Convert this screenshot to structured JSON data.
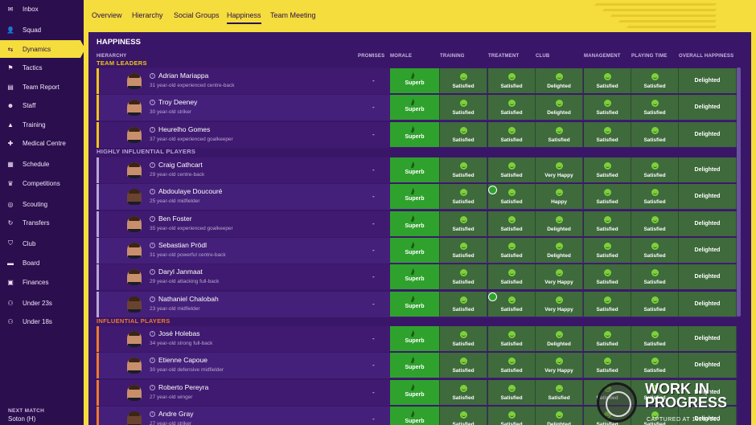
{
  "sidebar": {
    "items": [
      {
        "label": "Inbox",
        "icon": "inbox-icon",
        "glyph": "✉",
        "active": false
      },
      {
        "label": "Squad",
        "icon": "squad-icon",
        "glyph": "👤",
        "active": false
      },
      {
        "label": "Dynamics",
        "icon": "dynamics-icon",
        "glyph": "⇆",
        "active": true
      },
      {
        "label": "Tactics",
        "icon": "tactics-icon",
        "glyph": "⚑",
        "active": false
      },
      {
        "label": "Team Report",
        "icon": "report-icon",
        "glyph": "▤",
        "active": false
      },
      {
        "label": "Staff",
        "icon": "staff-icon",
        "glyph": "☻",
        "active": false
      },
      {
        "label": "Training",
        "icon": "training-icon",
        "glyph": "▲",
        "active": false
      },
      {
        "label": "Medical Centre",
        "icon": "medical-icon",
        "glyph": "✚",
        "active": false
      },
      {
        "label": "Schedule",
        "icon": "schedule-icon",
        "glyph": "▦",
        "active": false
      },
      {
        "label": "Competitions",
        "icon": "trophy-icon",
        "glyph": "♛",
        "active": false
      },
      {
        "label": "Scouting",
        "icon": "scouting-icon",
        "glyph": "◎",
        "active": false
      },
      {
        "label": "Transfers",
        "icon": "transfers-icon",
        "glyph": "↻",
        "active": false
      },
      {
        "label": "Club",
        "icon": "club-icon",
        "glyph": "⛉",
        "active": false
      },
      {
        "label": "Board",
        "icon": "board-icon",
        "glyph": "▬",
        "active": false
      },
      {
        "label": "Finances",
        "icon": "finances-icon",
        "glyph": "▣",
        "active": false
      },
      {
        "label": "Under 23s",
        "icon": "under23-icon",
        "glyph": "⚇",
        "active": false
      },
      {
        "label": "Under 18s",
        "icon": "under18-icon",
        "glyph": "⚇",
        "active": false
      }
    ],
    "next_match_label": "NEXT MATCH",
    "next_match_value": "Soton (H)"
  },
  "tabs": [
    "Overview",
    "Hierarchy",
    "Social Groups",
    "Happiness",
    "Team Meeting"
  ],
  "active_tab": "Happiness",
  "panel": {
    "title": "HAPPINESS",
    "columns": [
      "HIERARCHY",
      "PROMISES",
      "MORALE",
      "TRAINING",
      "TREATMENT",
      "CLUB",
      "MANAGEMENT",
      "PLAYING TIME",
      "OVERALL HAPPINESS"
    ]
  },
  "groups": [
    {
      "label": "TEAM LEADERS",
      "color": "#f0c419",
      "players": [
        {
          "name": "Adrian Mariappa",
          "desc": "31 year-old experienced centre-back",
          "promise": "-",
          "morale": "Superb",
          "training": "Satisfied",
          "treatment": "Satisfied",
          "club": "Delighted",
          "management": "Satisfied",
          "playing_time": "Satisfied",
          "overall": "Delighted",
          "dark": false
        },
        {
          "name": "Troy Deeney",
          "desc": "30 year-old striker",
          "promise": "-",
          "morale": "Superb",
          "training": "Satisfied",
          "treatment": "Satisfied",
          "club": "Delighted",
          "management": "Satisfied",
          "playing_time": "Satisfied",
          "overall": "Delighted",
          "dark": false
        },
        {
          "name": "Heurelho Gomes",
          "desc": "37 year-old experienced goalkeeper",
          "promise": "-",
          "morale": "Superb",
          "training": "Satisfied",
          "treatment": "Satisfied",
          "club": "Satisfied",
          "management": "Satisfied",
          "playing_time": "Satisfied",
          "overall": "Delighted",
          "dark": false
        }
      ]
    },
    {
      "label": "HIGHLY INFLUENTIAL PLAYERS",
      "color": "#b9a7d6",
      "players": [
        {
          "name": "Craig Cathcart",
          "desc": "29 year-old centre-back",
          "promise": "-",
          "morale": "Superb",
          "training": "Satisfied",
          "treatment": "Satisfied",
          "club": "Very Happy",
          "management": "Satisfied",
          "playing_time": "Satisfied",
          "overall": "Delighted",
          "dark": false
        },
        {
          "name": "Abdoulaye Doucouré",
          "desc": "25 year-old midfielder",
          "promise": "-",
          "morale": "Superb",
          "training": "Satisfied",
          "treatment": "Satisfied",
          "club": "Happy",
          "management": "Satisfied",
          "playing_time": "Satisfied",
          "overall": "Delighted",
          "dark": true
        },
        {
          "name": "Ben Foster",
          "desc": "35 year-old experienced goalkeeper",
          "promise": "-",
          "morale": "Superb",
          "training": "Satisfied",
          "treatment": "Satisfied",
          "club": "Delighted",
          "management": "Satisfied",
          "playing_time": "Satisfied",
          "overall": "Delighted",
          "dark": false
        },
        {
          "name": "Sebastian Prödl",
          "desc": "31 year-old powerful centre-back",
          "promise": "-",
          "morale": "Superb",
          "training": "Satisfied",
          "treatment": "Satisfied",
          "club": "Delighted",
          "management": "Satisfied",
          "playing_time": "Satisfied",
          "overall": "Delighted",
          "dark": false
        },
        {
          "name": "Daryl Janmaat",
          "desc": "29 year-old attacking full-back",
          "promise": "-",
          "morale": "Superb",
          "training": "Satisfied",
          "treatment": "Satisfied",
          "club": "Very Happy",
          "management": "Satisfied",
          "playing_time": "Satisfied",
          "overall": "Delighted",
          "dark": false
        },
        {
          "name": "Nathaniel Chalobah",
          "desc": "23 year-old midfielder",
          "promise": "-",
          "morale": "Superb",
          "training": "Satisfied",
          "treatment": "Satisfied",
          "club": "Very Happy",
          "management": "Satisfied",
          "playing_time": "Satisfied",
          "overall": "Delighted",
          "dark": true
        }
      ]
    },
    {
      "label": "INFLUENTIAL PLAYERS",
      "color": "#f07a2a",
      "players": [
        {
          "name": "José Holebas",
          "desc": "34 year-old strong full-back",
          "promise": "-",
          "morale": "Superb",
          "training": "Satisfied",
          "treatment": "Satisfied",
          "club": "Delighted",
          "management": "Satisfied",
          "playing_time": "Satisfied",
          "overall": "Delighted",
          "dark": false
        },
        {
          "name": "Etienne Capoue",
          "desc": "30 year-old defensive midfielder",
          "promise": "-",
          "morale": "Superb",
          "training": "Satisfied",
          "treatment": "Satisfied",
          "club": "Very Happy",
          "management": "Satisfied",
          "playing_time": "Satisfied",
          "overall": "Delighted",
          "dark": false
        },
        {
          "name": "Roberto Pereyra",
          "desc": "27 year-old winger",
          "promise": "-",
          "morale": "Superb",
          "training": "Satisfied",
          "treatment": "Satisfied",
          "club": "Satisfied",
          "management": "Satisfied",
          "playing_time": "Satisfied",
          "overall": "Delighted",
          "dark": false
        },
        {
          "name": "Andre Gray",
          "desc": "27 year-old striker",
          "promise": "-",
          "morale": "Superb",
          "training": "Satisfied",
          "treatment": "Satisfied",
          "club": "Delighted",
          "management": "Satisfied",
          "playing_time": "Satisfied",
          "overall": "Delighted",
          "dark": true
        }
      ]
    }
  ],
  "watermark": {
    "text_line1": "WORK IN",
    "text_line2": "PROGRESS",
    "sub": "CAPTURED AT 1920×900"
  }
}
